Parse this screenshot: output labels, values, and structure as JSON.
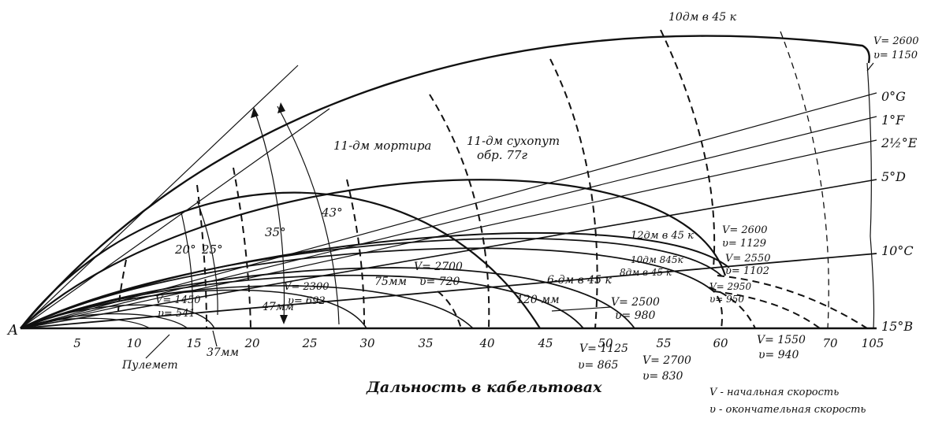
{
  "axis": {
    "origin_label": "A",
    "x_ticks": [
      "5",
      "10",
      "15",
      "20",
      "25",
      "30",
      "35",
      "40",
      "45",
      "50",
      "55",
      "60",
      "70",
      "105"
    ],
    "x_title": "Дальность в кабельтовах"
  },
  "legend": {
    "V_note": "V - начальная скорость",
    "v_note": "υ - окончательная скорость"
  },
  "angles": {
    "a20": "20°",
    "a25": "25°",
    "a35": "35°",
    "a43": "43°"
  },
  "elevations": {
    "g": "0°G",
    "f": "1°F",
    "e": "2½°E",
    "d": "5°D",
    "c": "10°C",
    "b": "15°B"
  },
  "guns": {
    "gun10": "10дм в 45 к",
    "gun10_V": "V= 2600",
    "gun10_v": "υ= 1150",
    "mortar11": "11-дм мортира",
    "land11_line1": "11-дм сухопут",
    "land11_line2": "обр. 77г",
    "gun12": "12дм в 45 к",
    "gun12_V": "V= 2600",
    "gun12_v": "υ= 1129",
    "gun10b": "10дм 845к",
    "gun8": "8дм в 45 к",
    "gun8_V": "V= 2550",
    "gun8_v": "υ= 1102",
    "gun6_V": "V= 2950",
    "gun6_v": "υ= 950",
    "gun6": "6-дм в 45 к",
    "gun120": "120-мм",
    "gun75": "75мм",
    "gun75_V": "V= 2700",
    "gun75_v": "υ= 720",
    "gun47": "47мм",
    "gun47_V": "V= 2300",
    "gun47_v": "υ= 692",
    "gun37_V": "V= 1450",
    "gun37_v": "υ= 541",
    "mg": "Пулемет",
    "gun37": "37мм",
    "c1_V": "V= 2500",
    "c1_v": "υ= 980",
    "c2_V": "V= 1125",
    "c2_v": "υ= 865",
    "c3_V": "V= 2700",
    "c3_v": "υ= 830",
    "c4_V": "V= 1550",
    "c4_v": "υ= 940"
  }
}
